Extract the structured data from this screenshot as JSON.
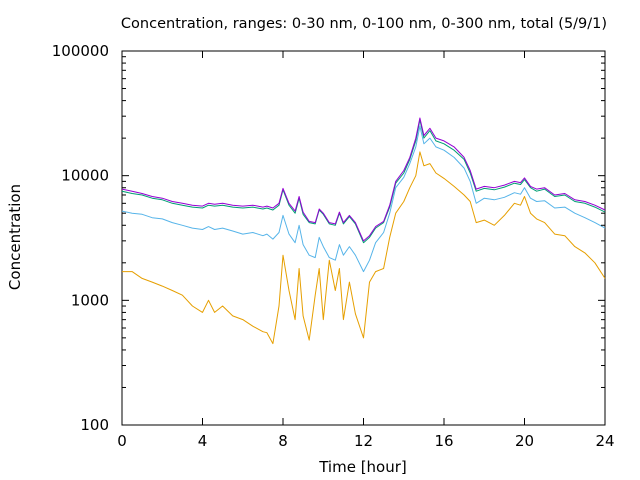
{
  "chart_data": {
    "type": "line",
    "title": "Concentration, ranges: 0-30 nm, 0-100 nm, 0-300 nm, total (5/9/1)",
    "xlabel": "Time [hour]",
    "ylabel": "Concentration",
    "xlim": [
      0,
      24
    ],
    "ylim": [
      100,
      100000
    ],
    "yscale": "log",
    "grid": false,
    "xticks": [
      0,
      4,
      8,
      12,
      16,
      20,
      24
    ],
    "xtick_labels": [
      "0",
      "4",
      "8",
      "12",
      "16",
      "20",
      "24"
    ],
    "yticks": [
      100,
      1000,
      10000,
      100000
    ],
    "ytick_labels": [
      "100",
      "1000",
      "10000",
      "100000"
    ],
    "x": [
      0,
      0.5,
      1,
      1.5,
      2,
      2.5,
      3,
      3.5,
      4,
      4.3,
      4.6,
      5,
      5.5,
      6,
      6.5,
      7,
      7.2,
      7.5,
      7.8,
      8,
      8.3,
      8.6,
      8.8,
      9,
      9.3,
      9.6,
      9.8,
      10,
      10.3,
      10.6,
      10.8,
      11,
      11.3,
      11.6,
      12,
      12.3,
      12.6,
      13,
      13.3,
      13.6,
      14,
      14.3,
      14.6,
      14.8,
      15,
      15.3,
      15.6,
      16,
      16.5,
      17,
      17.3,
      17.6,
      18,
      18.5,
      19,
      19.5,
      19.8,
      20,
      20.3,
      20.6,
      21,
      21.5,
      22,
      22.5,
      23,
      23.5,
      24
    ],
    "series": [
      {
        "color": "#9400d3",
        "values": [
          7800,
          7500,
          7200,
          6800,
          6600,
          6200,
          6000,
          5800,
          5700,
          6000,
          5900,
          6000,
          5800,
          5700,
          5800,
          5600,
          5700,
          5500,
          6000,
          7900,
          6000,
          5200,
          6800,
          5100,
          4300,
          4200,
          5400,
          5000,
          4200,
          4100,
          5100,
          4200,
          4800,
          4200,
          3000,
          3300,
          3900,
          4300,
          5800,
          9000,
          11000,
          14000,
          20000,
          29000,
          21000,
          24000,
          20000,
          19000,
          17000,
          14000,
          11000,
          7800,
          8200,
          8000,
          8400,
          9000,
          8800,
          9600,
          8200,
          7800,
          8000,
          7000,
          7200,
          6400,
          6200,
          5800,
          5300
        ]
      },
      {
        "color": "#009e73",
        "values": [
          7500,
          7200,
          7000,
          6600,
          6400,
          6000,
          5800,
          5600,
          5500,
          5800,
          5700,
          5800,
          5600,
          5500,
          5600,
          5400,
          5500,
          5300,
          5800,
          7700,
          5800,
          5000,
          6600,
          4900,
          4200,
          4100,
          5300,
          4900,
          4100,
          4000,
          5000,
          4100,
          4700,
          4100,
          2900,
          3200,
          3800,
          4200,
          5600,
          8700,
          10500,
          13500,
          19000,
          28000,
          20000,
          23000,
          19000,
          18000,
          16000,
          13500,
          10500,
          7500,
          7900,
          7700,
          8100,
          8700,
          8500,
          9300,
          8000,
          7500,
          7800,
          6800,
          7000,
          6200,
          6000,
          5600,
          5100
        ]
      },
      {
        "color": "#56b4e9",
        "values": [
          5200,
          5000,
          4900,
          4600,
          4500,
          4200,
          4000,
          3800,
          3700,
          3900,
          3700,
          3800,
          3600,
          3400,
          3500,
          3300,
          3400,
          3100,
          3500,
          4800,
          3400,
          2900,
          4000,
          2800,
          2300,
          2200,
          3200,
          2700,
          2200,
          2100,
          2800,
          2300,
          2700,
          2300,
          1700,
          2100,
          2900,
          3500,
          5000,
          8000,
          9700,
          12500,
          17000,
          25000,
          18000,
          20000,
          17000,
          16000,
          14000,
          11500,
          9000,
          6000,
          6600,
          6400,
          6700,
          7300,
          7100,
          8000,
          6600,
          6200,
          6300,
          5500,
          5600,
          5000,
          4600,
          4200,
          3800
        ]
      },
      {
        "color": "#e69f00",
        "values": [
          1700,
          1700,
          1500,
          1400,
          1300,
          1200,
          1100,
          900,
          800,
          1000,
          800,
          900,
          750,
          700,
          620,
          560,
          550,
          450,
          900,
          2300,
          1200,
          700,
          1800,
          750,
          480,
          1100,
          1800,
          700,
          2100,
          1200,
          1800,
          700,
          1400,
          780,
          500,
          1400,
          1700,
          1800,
          3200,
          5000,
          6200,
          8000,
          10000,
          15500,
          12000,
          12500,
          10500,
          9500,
          8200,
          7000,
          6200,
          4200,
          4400,
          4000,
          4800,
          6000,
          5800,
          6800,
          5000,
          4500,
          4200,
          3400,
          3300,
          2700,
          2400,
          2000,
          1500
        ]
      }
    ]
  }
}
